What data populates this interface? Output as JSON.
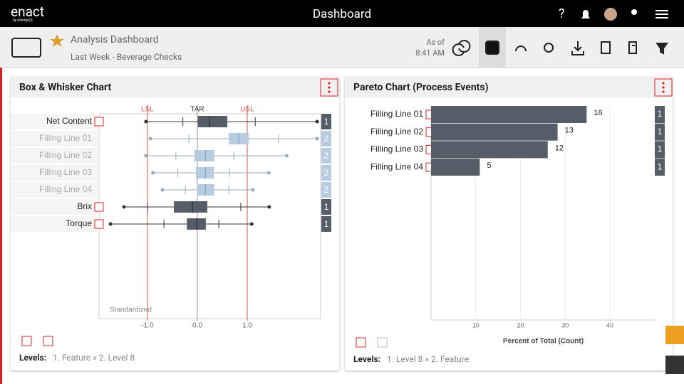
{
  "header": {
    "logo": "enact",
    "logo_sub": "by InfinityQS",
    "title": "Dashboard",
    "help": "?"
  },
  "toolbar": {
    "title": "Analysis Dashboard",
    "subtitle": "Last Week - Beverage Checks",
    "as_of": "As of",
    "time": "8:41 AM"
  },
  "box_panel": {
    "title": "Box & Whisker Chart",
    "type": "box",
    "axis_label": "Standardized",
    "xlim": [
      -1.97,
      2.47
    ],
    "xticks": [
      {
        "value": -1,
        "label": "-1.0"
      },
      {
        "value": 0,
        "label": "0.0"
      },
      {
        "value": 1,
        "label": "1.0"
      }
    ],
    "limits": [
      {
        "name": "LSL",
        "value": -1,
        "color": "#d9534f"
      },
      {
        "name": "TAR",
        "value": 0,
        "color": "#999999"
      },
      {
        "name": "USL",
        "value": 1,
        "color": "#d9534f"
      }
    ],
    "rows": [
      {
        "name": "Net Content",
        "min": -1.03,
        "low": -0.29,
        "q1": 0.01,
        "median": 0.24,
        "q3": 0.6,
        "high": 1.16,
        "max": 2.4,
        "count": 1,
        "active": true
      },
      {
        "name": "Filling Line 01",
        "min": -0.94,
        "low": -0.17,
        "q1": 0.63,
        "median": 0.83,
        "q3": 1.03,
        "high": 1.63,
        "max": 2.4,
        "count": 2,
        "active": false
      },
      {
        "name": "Filling Line 02",
        "min": -1.03,
        "low": -0.43,
        "q1": -0.06,
        "median": 0.16,
        "q3": 0.34,
        "high": 0.73,
        "max": 1.79,
        "count": 2,
        "active": false
      },
      {
        "name": "Filling Line 03",
        "min": -0.89,
        "low": -0.39,
        "q1": -0.03,
        "median": 0.16,
        "q3": 0.33,
        "high": 0.64,
        "max": 1.43,
        "count": 2,
        "active": false
      },
      {
        "name": "Filling Line 04",
        "min": -0.7,
        "low": -0.24,
        "q1": -0.01,
        "median": 0.16,
        "q3": 0.34,
        "high": 0.63,
        "max": 1.11,
        "count": 2,
        "active": false
      },
      {
        "name": "Brix",
        "min": -1.47,
        "low": -1.0,
        "q1": -0.47,
        "median": -0.1,
        "q3": 0.2,
        "high": 0.87,
        "max": 1.44,
        "count": 1,
        "active": true
      },
      {
        "name": "Torque",
        "min": -1.74,
        "low": -0.67,
        "q1": -0.21,
        "median": -0.01,
        "q3": 0.17,
        "high": 0.43,
        "max": 1.09,
        "count": 1,
        "active": true
      }
    ],
    "levels_label": "Levels:",
    "levels": "1. Feature » 2. Level 8"
  },
  "pareto_panel": {
    "title": "Pareto Chart (Process Events)",
    "type": "pareto",
    "axis_label": "Percent of Total (Count)",
    "xlim": [
      0,
      50.2
    ],
    "xticks": [
      10,
      20,
      30,
      40
    ],
    "color": "#555e68",
    "categories": [
      "Filling Line 01",
      "Filling Line 02",
      "Filling Line 03",
      "Filling Line 04"
    ],
    "values": [
      34.8,
      28.3,
      26.1,
      10.9
    ],
    "counts": [
      16,
      13,
      12,
      5
    ],
    "events": [
      1,
      1,
      1,
      1
    ],
    "levels_label": "Levels:",
    "levels": "1. Level 8 » 2. Feature"
  }
}
